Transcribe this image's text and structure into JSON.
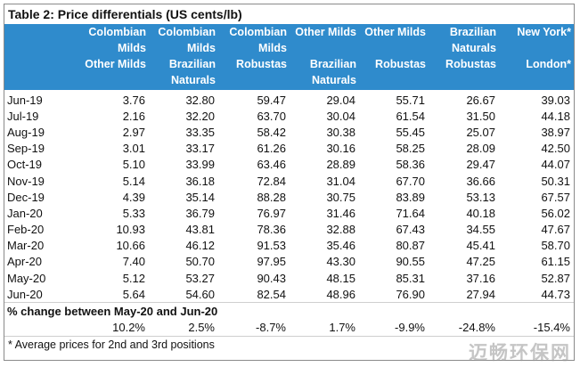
{
  "title": "Table 2: Price differentials (US cents/lb)",
  "columns": [
    {
      "lines": [
        "",
        "",
        ""
      ]
    },
    {
      "lines": [
        "Colombian",
        "Milds",
        "Other Milds"
      ]
    },
    {
      "lines": [
        "Colombian",
        "Milds",
        "Brazilian",
        "Naturals"
      ]
    },
    {
      "lines": [
        "Colombian",
        "Milds",
        "Robustas"
      ]
    },
    {
      "lines": [
        "Other Milds",
        "",
        "Brazilian",
        "Naturals"
      ]
    },
    {
      "lines": [
        "Other Milds",
        "",
        "Robustas"
      ]
    },
    {
      "lines": [
        "Brazilian",
        "Naturals",
        "Robustas"
      ]
    },
    {
      "lines": [
        "New York*",
        "",
        "London*"
      ]
    }
  ],
  "rows": [
    {
      "month": "Jun-19",
      "values": [
        "3.76",
        "32.80",
        "59.47",
        "29.04",
        "55.71",
        "26.67",
        "39.03"
      ]
    },
    {
      "month": "Jul-19",
      "values": [
        "2.16",
        "32.20",
        "63.70",
        "30.04",
        "61.54",
        "31.50",
        "44.18"
      ]
    },
    {
      "month": "Aug-19",
      "values": [
        "2.97",
        "33.35",
        "58.42",
        "30.38",
        "55.45",
        "25.07",
        "38.97"
      ]
    },
    {
      "month": "Sep-19",
      "values": [
        "3.01",
        "33.17",
        "61.26",
        "30.16",
        "58.25",
        "28.09",
        "42.50"
      ]
    },
    {
      "month": "Oct-19",
      "values": [
        "5.10",
        "33.99",
        "63.46",
        "28.89",
        "58.36",
        "29.47",
        "44.07"
      ]
    },
    {
      "month": "Nov-19",
      "values": [
        "5.14",
        "36.18",
        "72.84",
        "31.04",
        "67.70",
        "36.66",
        "50.31"
      ]
    },
    {
      "month": "Dec-19",
      "values": [
        "4.39",
        "35.14",
        "88.28",
        "30.75",
        "83.89",
        "53.13",
        "67.57"
      ]
    },
    {
      "month": "Jan-20",
      "values": [
        "5.33",
        "36.79",
        "76.97",
        "31.46",
        "71.64",
        "40.18",
        "56.02"
      ]
    },
    {
      "month": "Feb-20",
      "values": [
        "10.93",
        "43.81",
        "78.36",
        "32.88",
        "67.43",
        "34.55",
        "47.67"
      ]
    },
    {
      "month": "Mar-20",
      "values": [
        "10.66",
        "46.12",
        "91.53",
        "35.46",
        "80.87",
        "45.41",
        "58.70"
      ]
    },
    {
      "month": "Apr-20",
      "values": [
        "7.40",
        "50.70",
        "97.95",
        "43.30",
        "90.55",
        "47.25",
        "61.15"
      ]
    },
    {
      "month": "May-20",
      "values": [
        "5.12",
        "53.27",
        "90.43",
        "48.15",
        "85.31",
        "37.16",
        "52.87"
      ]
    },
    {
      "month": "Jun-20",
      "values": [
        "5.64",
        "54.60",
        "82.54",
        "48.96",
        "76.90",
        "27.94",
        "44.73"
      ]
    }
  ],
  "change": {
    "label": "% change between May-20 and Jun-20",
    "values": [
      "10.2%",
      "2.5%",
      "-8.7%",
      "1.7%",
      "-9.9%",
      "-24.8%",
      "-15.4%"
    ]
  },
  "footnote": "* Average prices for 2nd and 3rd positions",
  "watermark": "迈畅环保网",
  "colors": {
    "header_bg": "#2f8bcc",
    "header_text": "#ffffff"
  }
}
